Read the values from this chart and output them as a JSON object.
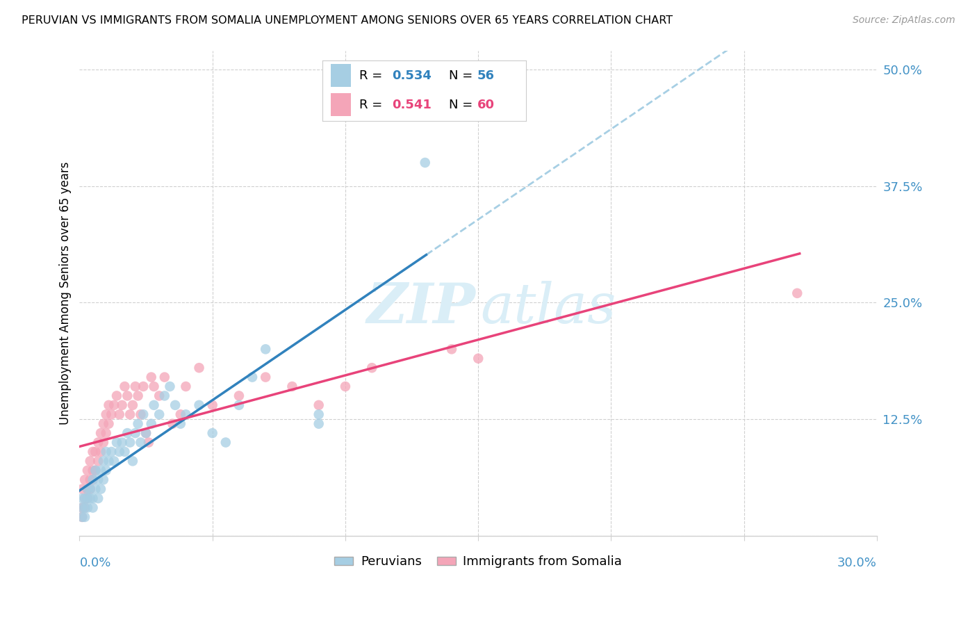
{
  "title": "PERUVIAN VS IMMIGRANTS FROM SOMALIA UNEMPLOYMENT AMONG SENIORS OVER 65 YEARS CORRELATION CHART",
  "source": "Source: ZipAtlas.com",
  "ylabel": "Unemployment Among Seniors over 65 years",
  "xlim": [
    0.0,
    0.3
  ],
  "ylim": [
    0.0,
    0.52
  ],
  "ytick_vals": [
    0.0,
    0.125,
    0.25,
    0.375,
    0.5
  ],
  "ytick_labels": [
    "",
    "12.5%",
    "25.0%",
    "37.5%",
    "50.0%"
  ],
  "xtick_vals": [
    0.0,
    0.05,
    0.1,
    0.15,
    0.2,
    0.25,
    0.3
  ],
  "blue_scatter_color": "#a6cee3",
  "pink_scatter_color": "#f4a5b8",
  "blue_line_color": "#3182bd",
  "pink_line_color": "#e8437a",
  "blue_dashed_color": "#9ecae1",
  "axis_tick_color": "#4292c6",
  "grid_color": "#d0d0d0",
  "watermark_color": "#daeef7",
  "legend_R_blue": "0.534",
  "legend_N_blue": "56",
  "legend_R_pink": "0.541",
  "legend_N_pink": "60",
  "background": "#ffffff",
  "peru_x": [
    0.001,
    0.001,
    0.001,
    0.002,
    0.002,
    0.002,
    0.003,
    0.003,
    0.003,
    0.004,
    0.004,
    0.005,
    0.005,
    0.005,
    0.006,
    0.006,
    0.007,
    0.007,
    0.008,
    0.008,
    0.009,
    0.009,
    0.01,
    0.01,
    0.011,
    0.012,
    0.013,
    0.014,
    0.015,
    0.016,
    0.017,
    0.018,
    0.019,
    0.02,
    0.021,
    0.022,
    0.023,
    0.024,
    0.025,
    0.027,
    0.028,
    0.03,
    0.032,
    0.034,
    0.036,
    0.038,
    0.04,
    0.045,
    0.05,
    0.055,
    0.06,
    0.065,
    0.07,
    0.09,
    0.09,
    0.13
  ],
  "peru_y": [
    0.02,
    0.03,
    0.04,
    0.02,
    0.03,
    0.04,
    0.03,
    0.04,
    0.05,
    0.04,
    0.05,
    0.03,
    0.04,
    0.06,
    0.05,
    0.07,
    0.04,
    0.06,
    0.05,
    0.07,
    0.06,
    0.08,
    0.07,
    0.09,
    0.08,
    0.09,
    0.08,
    0.1,
    0.09,
    0.1,
    0.09,
    0.11,
    0.1,
    0.08,
    0.11,
    0.12,
    0.1,
    0.13,
    0.11,
    0.12,
    0.14,
    0.13,
    0.15,
    0.16,
    0.14,
    0.12,
    0.13,
    0.14,
    0.11,
    0.1,
    0.14,
    0.17,
    0.2,
    0.13,
    0.12,
    0.4
  ],
  "soma_x": [
    0.001,
    0.001,
    0.001,
    0.002,
    0.002,
    0.002,
    0.003,
    0.003,
    0.003,
    0.004,
    0.004,
    0.004,
    0.005,
    0.005,
    0.005,
    0.006,
    0.006,
    0.007,
    0.007,
    0.008,
    0.008,
    0.009,
    0.009,
    0.01,
    0.01,
    0.011,
    0.011,
    0.012,
    0.013,
    0.014,
    0.015,
    0.016,
    0.017,
    0.018,
    0.019,
    0.02,
    0.021,
    0.022,
    0.023,
    0.024,
    0.025,
    0.026,
    0.027,
    0.028,
    0.03,
    0.032,
    0.035,
    0.038,
    0.04,
    0.045,
    0.05,
    0.06,
    0.07,
    0.08,
    0.09,
    0.1,
    0.11,
    0.14,
    0.15,
    0.27
  ],
  "soma_y": [
    0.02,
    0.03,
    0.05,
    0.03,
    0.04,
    0.06,
    0.04,
    0.05,
    0.07,
    0.05,
    0.06,
    0.08,
    0.06,
    0.07,
    0.09,
    0.07,
    0.09,
    0.08,
    0.1,
    0.09,
    0.11,
    0.1,
    0.12,
    0.11,
    0.13,
    0.12,
    0.14,
    0.13,
    0.14,
    0.15,
    0.13,
    0.14,
    0.16,
    0.15,
    0.13,
    0.14,
    0.16,
    0.15,
    0.13,
    0.16,
    0.11,
    0.1,
    0.17,
    0.16,
    0.15,
    0.17,
    0.12,
    0.13,
    0.16,
    0.18,
    0.14,
    0.15,
    0.17,
    0.16,
    0.14,
    0.16,
    0.18,
    0.2,
    0.19,
    0.26
  ]
}
